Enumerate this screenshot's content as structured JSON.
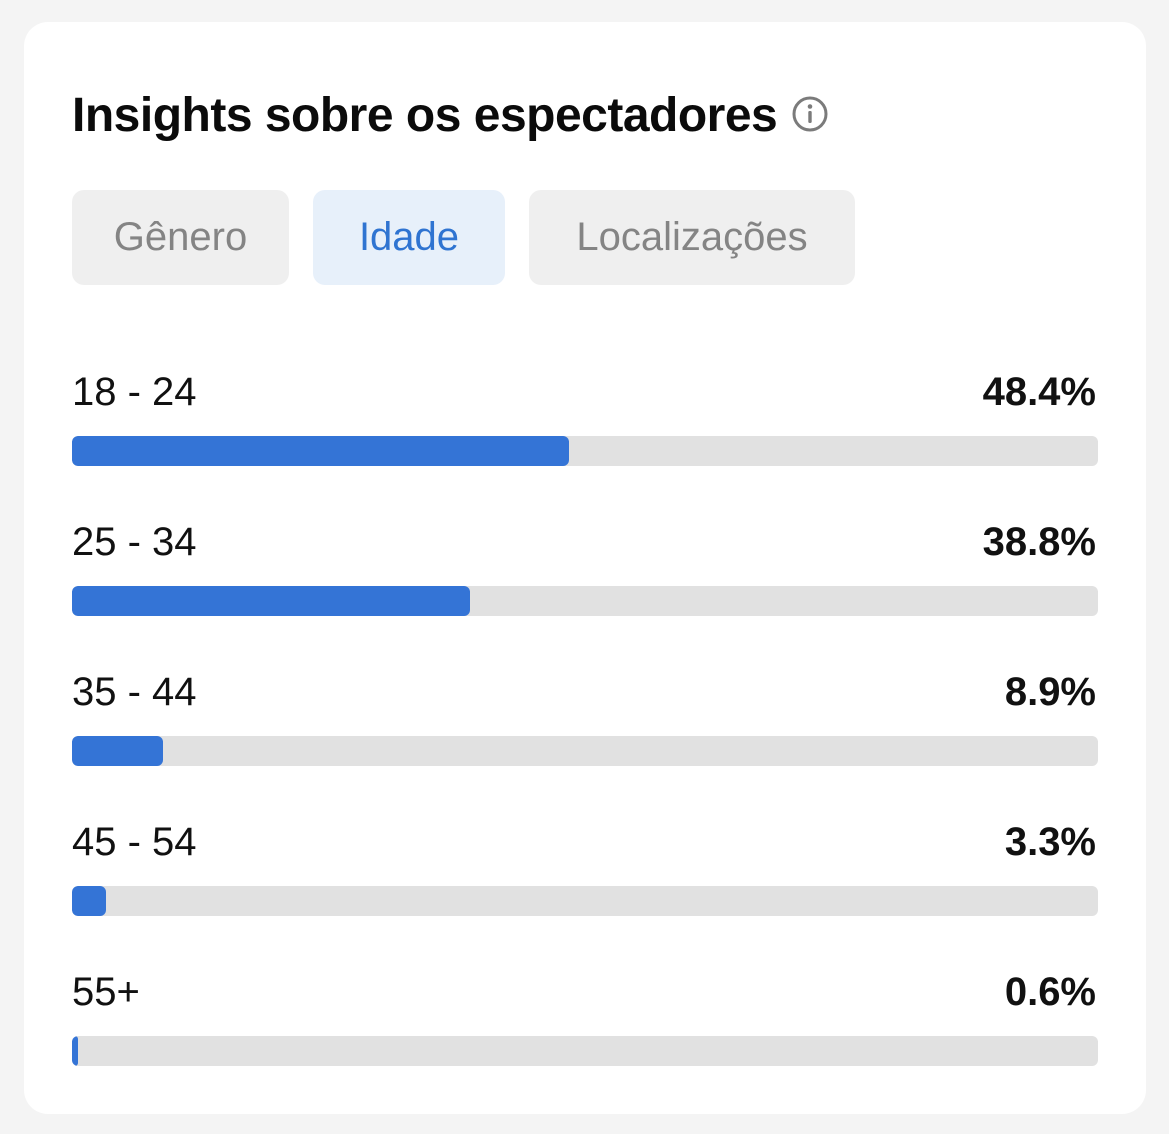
{
  "card": {
    "title": "Insights sobre os espectadores",
    "info_icon": "info-circle-icon"
  },
  "tabs": [
    {
      "label": "Gênero",
      "active": false
    },
    {
      "label": "Idade",
      "active": true
    },
    {
      "label": "Localizações",
      "active": false
    }
  ],
  "colors": {
    "accent": "#3474d6",
    "active_tab_bg": "#e7f0fa",
    "active_tab_text": "#2f74d1",
    "track": "#e1e1e1"
  },
  "age_rows": [
    {
      "label": "18 - 24",
      "value_text": "48.4%",
      "fraction": 0.484
    },
    {
      "label": "25 - 34",
      "value_text": "38.8%",
      "fraction": 0.388
    },
    {
      "label": "35 - 44",
      "value_text": "8.9%",
      "fraction": 0.089
    },
    {
      "label": "45 - 54",
      "value_text": "3.3%",
      "fraction": 0.033
    },
    {
      "label": "55+",
      "value_text": "0.6%",
      "fraction": 0.006
    }
  ]
}
